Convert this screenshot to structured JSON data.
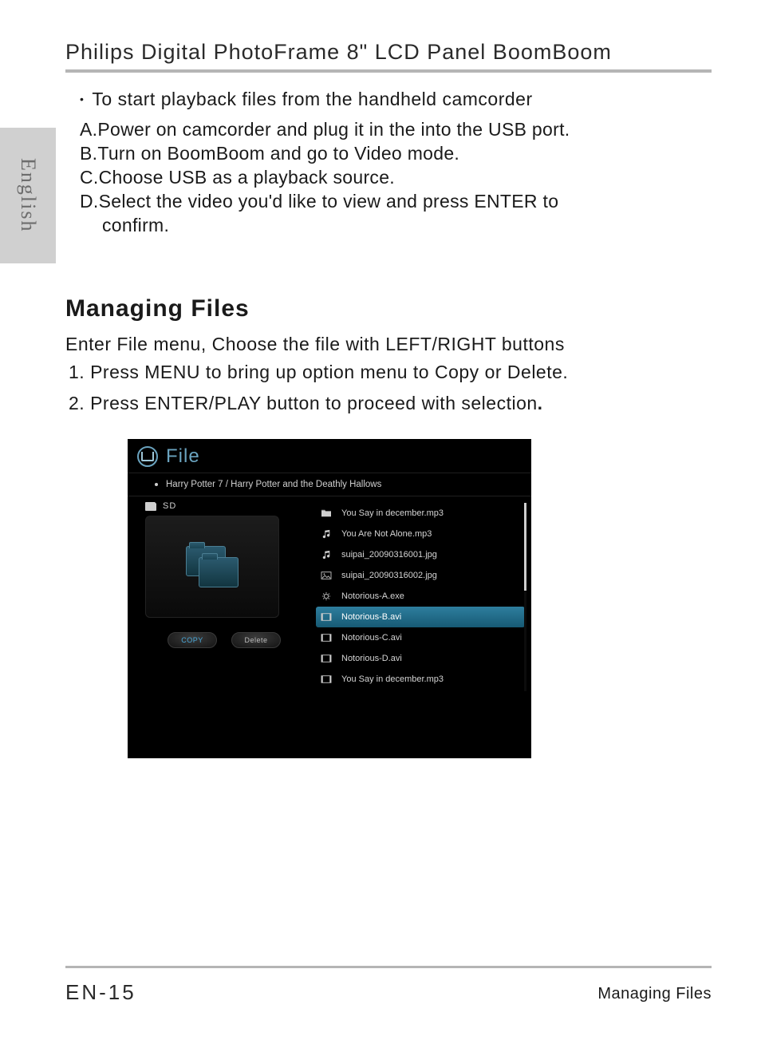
{
  "doc": {
    "title": "Philips Digital PhotoFrame 8\" LCD Panel BoomBoom",
    "language_tab": "English",
    "intro_bullet": "To start playback files from the handheld camcorder",
    "steps": {
      "a": "A.Power on camcorder and plug it in the into the USB port.",
      "b": "B.Turn on BoomBoom and go to Video mode.",
      "c": "C.Choose USB as a playback source.",
      "d": "D.Select the video you'd like to view and press ENTER to",
      "d2": "confirm."
    },
    "section_title": "Managing Files",
    "body1": "Enter File menu, Choose the file with LEFT/RIGHT buttons",
    "num1": "1.  Press MENU to bring up option menu to Copy or Delete.",
    "num2_a": "2.  Press ENTER/PLAY button to proceed with selection",
    "num2_b": ".",
    "page_number": "EN-15",
    "footer_right": "Managing Files"
  },
  "shot": {
    "header_title": "File",
    "breadcrumb": "Harry Potter 7 / Harry Potter and the Deathly Hallows",
    "storage_label": "SD",
    "buttons": {
      "copy": "COPY",
      "delete": "Delete"
    },
    "files": [
      {
        "icon": "folder",
        "name": "You Say in december.mp3",
        "selected": false
      },
      {
        "icon": "music",
        "name": "You Are Not Alone.mp3",
        "selected": false
      },
      {
        "icon": "music",
        "name": "suipai_20090316001.jpg",
        "selected": false
      },
      {
        "icon": "image",
        "name": "suipai_20090316002.jpg",
        "selected": false
      },
      {
        "icon": "gear",
        "name": "Notorious-A.exe",
        "selected": false
      },
      {
        "icon": "video",
        "name": "Notorious-B.avi",
        "selected": true
      },
      {
        "icon": "video",
        "name": "Notorious-C.avi",
        "selected": false
      },
      {
        "icon": "video",
        "name": "Notorious-D.avi",
        "selected": false
      },
      {
        "icon": "video",
        "name": "You Say in december.mp3",
        "selected": false
      }
    ],
    "colors": {
      "bg": "#000000",
      "accent": "#6aa3bf",
      "row_selected_top": "#2e7e9e",
      "row_selected_bottom": "#175a74",
      "text": "#d4d4d4"
    }
  }
}
